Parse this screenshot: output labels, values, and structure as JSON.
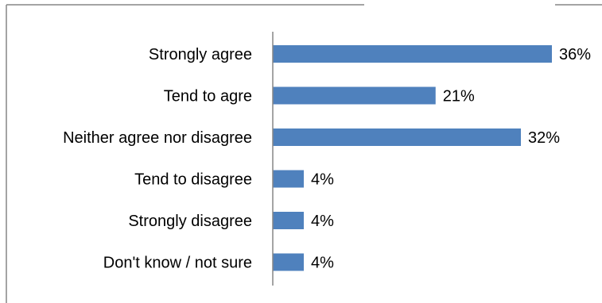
{
  "chart_data": {
    "type": "bar",
    "orientation": "horizontal",
    "title": "",
    "xlabel": "",
    "ylabel": "",
    "categories": [
      "Strongly agree",
      "Tend to agre",
      "Neither agree nor disagree",
      "Tend to disagree",
      "Strongly disagree",
      "Don't know / not sure"
    ],
    "values": [
      36,
      21,
      32,
      4,
      4,
      4
    ],
    "data_labels": [
      "36%",
      "21%",
      "32%",
      "4%",
      "4%",
      "4%"
    ],
    "xlim": [
      0,
      36
    ],
    "grid": false,
    "legend": "none",
    "bar_color": "#4F81BD",
    "axis_color": "#868686",
    "border_color": "#868686"
  }
}
